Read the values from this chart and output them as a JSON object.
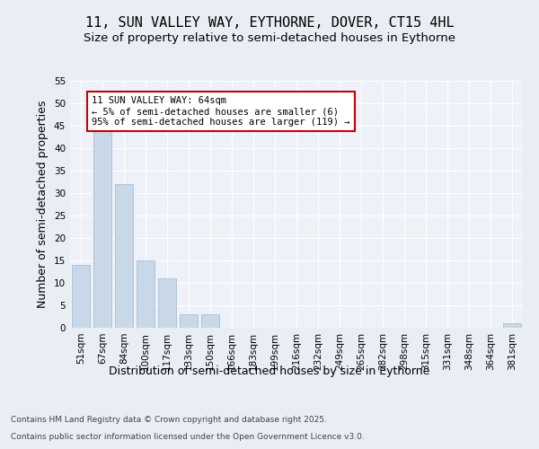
{
  "title_line1": "11, SUN VALLEY WAY, EYTHORNE, DOVER, CT15 4HL",
  "title_line2": "Size of property relative to semi-detached houses in Eythorne",
  "xlabel": "Distribution of semi-detached houses by size in Eythorne",
  "ylabel": "Number of semi-detached properties",
  "categories": [
    "51sqm",
    "67sqm",
    "84sqm",
    "100sqm",
    "117sqm",
    "133sqm",
    "150sqm",
    "166sqm",
    "183sqm",
    "199sqm",
    "216sqm",
    "232sqm",
    "249sqm",
    "265sqm",
    "282sqm",
    "298sqm",
    "315sqm",
    "331sqm",
    "348sqm",
    "364sqm",
    "381sqm"
  ],
  "values": [
    14,
    46,
    32,
    15,
    11,
    3,
    3,
    0,
    0,
    0,
    0,
    0,
    0,
    0,
    0,
    0,
    0,
    0,
    0,
    0,
    1
  ],
  "bar_color": "#c8d8e8",
  "bar_edge_color": "#a0b8cc",
  "annotation_text": "11 SUN VALLEY WAY: 64sqm\n← 5% of semi-detached houses are smaller (6)\n95% of semi-detached houses are larger (119) →",
  "annotation_box_color": "#ffffff",
  "annotation_box_edge_color": "#cc0000",
  "ylim": [
    0,
    55
  ],
  "yticks": [
    0,
    5,
    10,
    15,
    20,
    25,
    30,
    35,
    40,
    45,
    50,
    55
  ],
  "background_color": "#e8eef4",
  "plot_background_color": "#eef2f8",
  "grid_color": "#ffffff",
  "footer_line1": "Contains HM Land Registry data © Crown copyright and database right 2025.",
  "footer_line2": "Contains public sector information licensed under the Open Government Licence v3.0.",
  "title_fontsize": 11,
  "subtitle_fontsize": 9.5,
  "axis_label_fontsize": 9,
  "tick_fontsize": 7.5,
  "annotation_fontsize": 7.5,
  "footer_fontsize": 6.5
}
